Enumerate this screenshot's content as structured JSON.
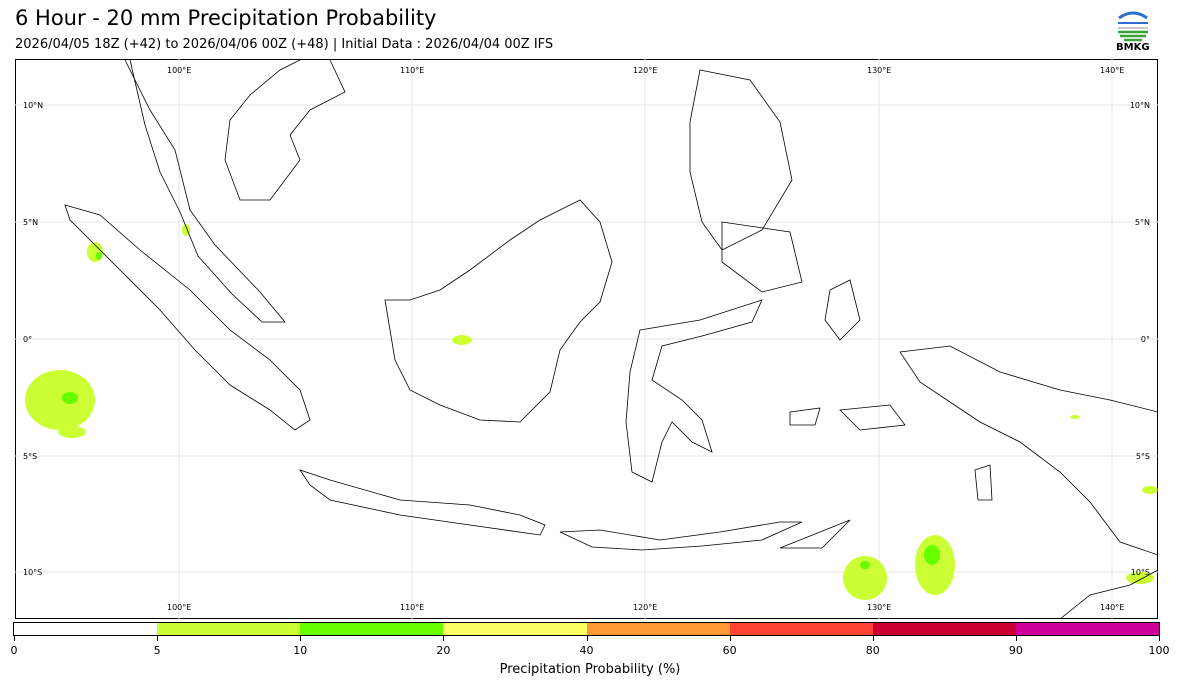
{
  "header": {
    "title": "6 Hour - 20 mm Precipitation Probability",
    "subtitle": "2026/04/05 18Z (+42) to 2026/04/06 00Z (+48) | Initial Data : 2026/04/04 00Z IFS",
    "logo_text": "BMKG"
  },
  "map": {
    "lon_labels": [
      "100°E",
      "110°E",
      "120°E",
      "130°E",
      "140°E"
    ],
    "lat_labels": [
      "10°N",
      "5°N",
      "0°",
      "5°S",
      "10°S"
    ],
    "lon_range": [
      93,
      142
    ],
    "lat_range": [
      -12,
      12
    ]
  },
  "colorbar": {
    "label": "Precipitation Probability (%)",
    "ticks": [
      "0",
      "5",
      "10",
      "20",
      "40",
      "60",
      "80",
      "90",
      "100"
    ],
    "colors": [
      "#ffffff",
      "#ccff33",
      "#66ff00",
      "#ffff66",
      "#ff9933",
      "#ff4433",
      "#cc0033",
      "#cc0099"
    ]
  }
}
